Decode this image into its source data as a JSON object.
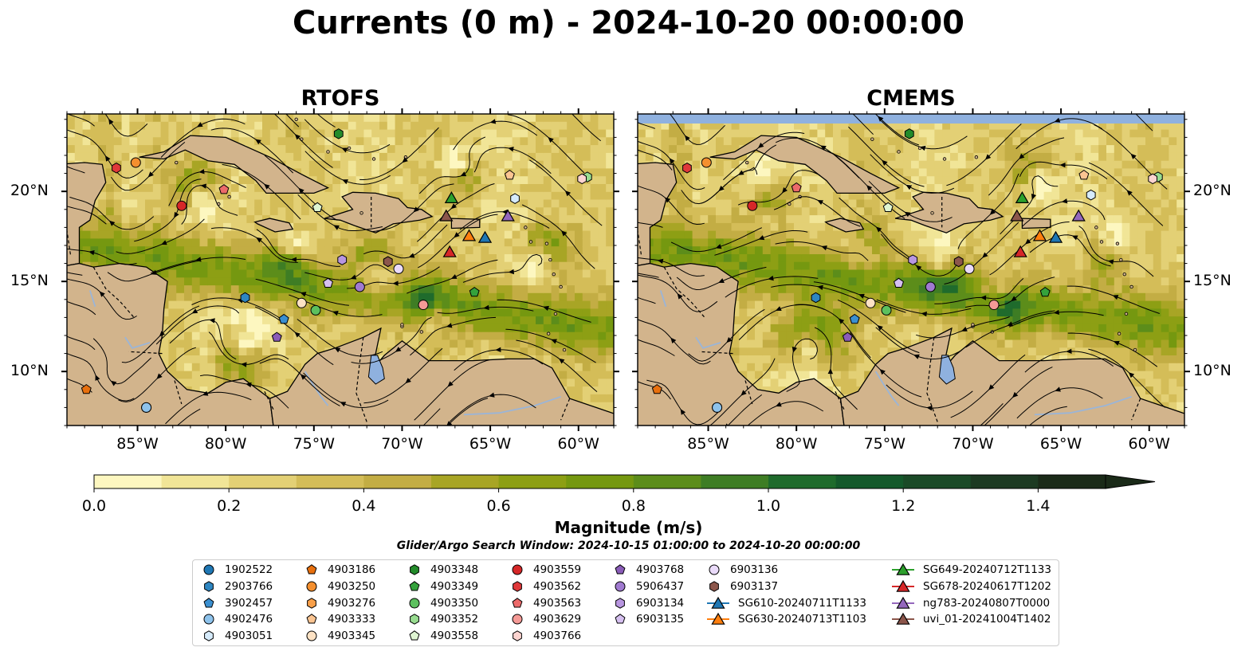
{
  "title": "Currents (0 m) - 2024-10-20 00:00:00",
  "panels": [
    {
      "id": "rtofs",
      "title": "RTOFS"
    },
    {
      "id": "cmems",
      "title": "CMEMS"
    }
  ],
  "axes": {
    "lon_ticks": [
      "85°W",
      "80°W",
      "75°W",
      "70°W",
      "65°W",
      "60°W"
    ],
    "lat_ticks": [
      "20°N",
      "15°N",
      "10°N"
    ],
    "lon_values": [
      -85,
      -80,
      -75,
      -70,
      -65,
      -60
    ],
    "lat_values": [
      20,
      15,
      10
    ],
    "lon_range": [
      -89,
      -58
    ],
    "lat_range": [
      7,
      24.3
    ]
  },
  "colorbar": {
    "label": "Magnitude (m/s)",
    "ticks": [
      "0.0",
      "0.2",
      "0.4",
      "0.6",
      "0.8",
      "1.0",
      "1.2",
      "1.4"
    ],
    "range": [
      0,
      1.5
    ],
    "extend": "max",
    "colors": [
      "#fdf7c0",
      "#f1e597",
      "#e3d075",
      "#d4bd58",
      "#c3ad44",
      "#a8a525",
      "#8d9f14",
      "#759810",
      "#5c8d1a",
      "#3e7d24",
      "#1f6b2c",
      "#14592b",
      "#1a4a27",
      "#1c3a22",
      "#1a2a18"
    ]
  },
  "search_window": "Glider/Argo Search Window: 2024-10-15 01:00:00 to 2024-10-20 00:00:00",
  "colors": {
    "land": "#d2b48c",
    "water_inland": "#8fb1df",
    "river": "#9ab5d8"
  },
  "legend": {
    "columns": [
      [
        {
          "label": "1902522",
          "marker": "circle",
          "color": "#1f77b4"
        },
        {
          "label": "2903766",
          "marker": "hexagon",
          "color": "#2e86c1"
        },
        {
          "label": "3902457",
          "marker": "pentagon",
          "color": "#3a8fd0"
        },
        {
          "label": "4902476",
          "marker": "circle",
          "color": "#8ec3ec"
        },
        {
          "label": "4903051",
          "marker": "hexagon",
          "color": "#d6ebfb"
        }
      ],
      [
        {
          "label": "4903186",
          "marker": "pentagon",
          "color": "#e8700e"
        },
        {
          "label": "4903250",
          "marker": "circle",
          "color": "#f48f2e"
        },
        {
          "label": "4903276",
          "marker": "hexagon",
          "color": "#f9a04a"
        },
        {
          "label": "4903333",
          "marker": "pentagon",
          "color": "#fbc592"
        },
        {
          "label": "4903345",
          "marker": "circle",
          "color": "#fde2c4"
        }
      ],
      [
        {
          "label": "4903348",
          "marker": "hexagon",
          "color": "#238b2a"
        },
        {
          "label": "4903349",
          "marker": "pentagon",
          "color": "#34a23c"
        },
        {
          "label": "4903350",
          "marker": "circle",
          "color": "#5cc05e"
        },
        {
          "label": "4903352",
          "marker": "hexagon",
          "color": "#98dc90"
        },
        {
          "label": "4903558",
          "marker": "pentagon",
          "color": "#dff5d2"
        }
      ],
      [
        {
          "label": "4903559",
          "marker": "circle",
          "color": "#d62728"
        },
        {
          "label": "4903562",
          "marker": "hexagon",
          "color": "#e0383a"
        },
        {
          "label": "4903563",
          "marker": "pentagon",
          "color": "#ec6a6a"
        },
        {
          "label": "4903629",
          "marker": "circle",
          "color": "#f59a96"
        },
        {
          "label": "4903766",
          "marker": "hexagon",
          "color": "#fcd4d0"
        }
      ],
      [
        {
          "label": "4903768",
          "marker": "pentagon",
          "color": "#8a5cb8"
        },
        {
          "label": "5906437",
          "marker": "circle",
          "color": "#a07ad0"
        },
        {
          "label": "6903134",
          "marker": "hexagon",
          "color": "#b896e0"
        },
        {
          "label": "6903135",
          "marker": "pentagon",
          "color": "#d6c0f0"
        }
      ],
      [
        {
          "label": "6903136",
          "marker": "circle",
          "color": "#eadbfa"
        },
        {
          "label": "6903137",
          "marker": "hexagon",
          "color": "#8c564b"
        },
        {
          "label": "SG610-20240711T1133",
          "marker": "triangle-line",
          "color": "#1f77b4"
        },
        {
          "label": "SG630-20240713T1103",
          "marker": "triangle-line",
          "color": "#ff7f0e"
        }
      ],
      [
        {
          "label": "SG649-20240712T1133",
          "marker": "triangle-line",
          "color": "#2ca02c"
        },
        {
          "label": "SG678-20240617T1202",
          "marker": "triangle-line",
          "color": "#d62728"
        },
        {
          "label": "ng783-20240807T0000",
          "marker": "triangle-line",
          "color": "#9467bd"
        },
        {
          "label": "uvi_01-20241004T1402",
          "marker": "triangle-line",
          "color": "#8c564b"
        }
      ]
    ]
  },
  "observations": [
    {
      "label": "1902522",
      "lon": -84.5,
      "lat": 8.0,
      "cmems_lon": -84.5,
      "cmems_lat": 8.0
    },
    {
      "label": "2903766",
      "lon": -78.9,
      "lat": 14.1,
      "cmems_lon": -78.9,
      "cmems_lat": 14.1
    },
    {
      "label": "3902457",
      "lon": -76.7,
      "lat": 12.9,
      "cmems_lon": -76.7,
      "cmems_lat": 12.9
    },
    {
      "label": "4902476",
      "lon": -84.5,
      "lat": 8.0,
      "cmems_lon": -84.5,
      "cmems_lat": 8.0
    },
    {
      "label": "4903051",
      "lon": -63.6,
      "lat": 19.6,
      "cmems_lon": -63.3,
      "cmems_lat": 19.8
    },
    {
      "label": "4903186",
      "lon": -87.9,
      "lat": 9.0,
      "cmems_lon": -87.9,
      "cmems_lat": 9.0
    },
    {
      "label": "4903250",
      "lon": -85.1,
      "lat": 21.6,
      "cmems_lon": -85.1,
      "cmems_lat": 21.6
    },
    {
      "label": "4903276",
      "lon": -70.8,
      "lat": 16.1,
      "cmems_lon": -70.8,
      "cmems_lat": 16.1
    },
    {
      "label": "4903333",
      "lon": -63.9,
      "lat": 20.9,
      "cmems_lon": -63.7,
      "cmems_lat": 20.9
    },
    {
      "label": "4903345",
      "lon": -75.7,
      "lat": 13.8,
      "cmems_lon": -75.8,
      "cmems_lat": 13.8
    },
    {
      "label": "4903348",
      "lon": -73.6,
      "lat": 23.2,
      "cmems_lon": -73.6,
      "cmems_lat": 23.2
    },
    {
      "label": "4903349",
      "lon": -65.9,
      "lat": 14.4,
      "cmems_lon": -65.9,
      "cmems_lat": 14.4
    },
    {
      "label": "4903350",
      "lon": -74.9,
      "lat": 13.4,
      "cmems_lon": -74.9,
      "cmems_lat": 13.4
    },
    {
      "label": "4903352",
      "lon": -59.5,
      "lat": 20.8,
      "cmems_lon": -59.5,
      "cmems_lat": 20.8
    },
    {
      "label": "4903558",
      "lon": -74.8,
      "lat": 19.1,
      "cmems_lon": -74.8,
      "cmems_lat": 19.1
    },
    {
      "label": "4903559",
      "lon": -82.5,
      "lat": 19.2,
      "cmems_lon": -82.5,
      "cmems_lat": 19.2
    },
    {
      "label": "4903562",
      "lon": -86.2,
      "lat": 21.3,
      "cmems_lon": -86.2,
      "cmems_lat": 21.3
    },
    {
      "label": "4903563",
      "lon": -80.1,
      "lat": 20.1,
      "cmems_lon": -80.0,
      "cmems_lat": 20.2
    },
    {
      "label": "4903629",
      "lon": -68.8,
      "lat": 13.7,
      "cmems_lon": -68.8,
      "cmems_lat": 13.7
    },
    {
      "label": "4903766",
      "lon": -59.8,
      "lat": 20.7,
      "cmems_lon": -59.8,
      "cmems_lat": 20.7
    },
    {
      "label": "4903768",
      "lon": -77.1,
      "lat": 11.9,
      "cmems_lon": -77.1,
      "cmems_lat": 11.9
    },
    {
      "label": "5906437",
      "lon": -72.4,
      "lat": 14.7,
      "cmems_lon": -72.4,
      "cmems_lat": 14.7
    },
    {
      "label": "6903134",
      "lon": -73.4,
      "lat": 16.2,
      "cmems_lon": -73.4,
      "cmems_lat": 16.2
    },
    {
      "label": "6903135",
      "lon": -74.2,
      "lat": 14.9,
      "cmems_lon": -74.2,
      "cmems_lat": 14.9
    },
    {
      "label": "6903136",
      "lon": -70.2,
      "lat": 15.7,
      "cmems_lon": -70.2,
      "cmems_lat": 15.7
    },
    {
      "label": "6903137",
      "lon": -70.8,
      "lat": 16.1,
      "cmems_lon": -70.8,
      "cmems_lat": 16.1
    },
    {
      "label": "SG610-20240711T1133",
      "lon": -65.3,
      "lat": 17.4,
      "cmems_lon": -65.3,
      "cmems_lat": 17.4
    },
    {
      "label": "SG630-20240713T1103",
      "lon": -66.2,
      "lat": 17.5,
      "cmems_lon": -66.2,
      "cmems_lat": 17.5
    },
    {
      "label": "SG649-20240712T1133",
      "lon": -67.2,
      "lat": 19.6,
      "cmems_lon": -67.2,
      "cmems_lat": 19.6
    },
    {
      "label": "SG678-20240617T1202",
      "lon": -67.3,
      "lat": 16.6,
      "cmems_lon": -67.3,
      "cmems_lat": 16.6
    },
    {
      "label": "ng783-20240807T0000",
      "lon": -64.0,
      "lat": 18.6,
      "cmems_lon": -64.0,
      "cmems_lat": 18.6
    },
    {
      "label": "uvi_01-20241004T1402",
      "lon": -67.5,
      "lat": 18.6,
      "cmems_lon": -67.5,
      "cmems_lat": 18.6
    }
  ]
}
